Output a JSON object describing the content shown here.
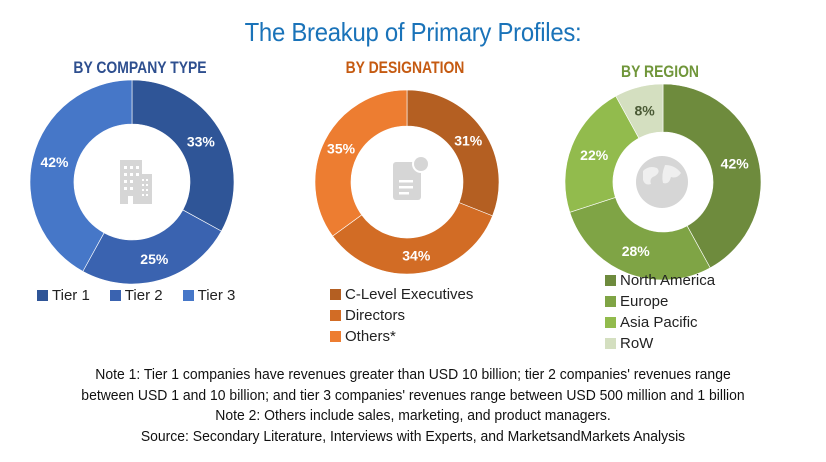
{
  "title": "The Breakup of Primary Profiles:",
  "chart_data": [
    {
      "type": "pie",
      "subtype": "donut",
      "title": "BY COMPANY TYPE",
      "title_color": "#2e4f8f",
      "categories": [
        "Tier 1",
        "Tier 2",
        "Tier 3"
      ],
      "values": [
        33,
        25,
        42
      ],
      "labels": [
        "33%",
        "25%",
        "42%"
      ],
      "colors": [
        "#2f5597",
        "#3a63b0",
        "#4677c8"
      ],
      "legend_position": "bottom",
      "center_icon": "building-icon"
    },
    {
      "type": "pie",
      "subtype": "donut",
      "title": "BY DESIGNATION",
      "title_color": "#c55a11",
      "categories": [
        "C-Level Executives",
        "Directors",
        "Others*"
      ],
      "values": [
        31,
        34,
        35
      ],
      "labels": [
        "31%",
        "34%",
        "35%"
      ],
      "colors": [
        "#b45f22",
        "#d26c25",
        "#ed7d31"
      ],
      "legend_position": "bottom",
      "center_icon": "certificate-document-icon"
    },
    {
      "type": "pie",
      "subtype": "donut",
      "title": "BY REGION",
      "title_color": "#70963a",
      "categories": [
        "North America",
        "Europe",
        "Asia Pacific",
        "RoW"
      ],
      "values": [
        42,
        28,
        22,
        8
      ],
      "labels": [
        "42%",
        "28%",
        "22%",
        "8%"
      ],
      "colors": [
        "#6e8b3d",
        "#7fa445",
        "#92bb4d",
        "#d4dfc0"
      ],
      "label_colors": [
        "#ffffff",
        "#ffffff",
        "#ffffff",
        "#4a5a35"
      ],
      "legend_position": "bottom",
      "center_icon": "globe-icon"
    }
  ],
  "notes": [
    "Note 1: Tier 1 companies have revenues greater than USD 10 billion; tier 2 companies' revenues range",
    "between USD 1 and 10 billion; and tier 3 companies' revenues range between USD 500 million and 1 billion",
    "Note 2: Others include sales, marketing, and product managers.",
    "Source: Secondary Literature, Interviews with Experts, and MarketsandMarkets Analysis"
  ]
}
